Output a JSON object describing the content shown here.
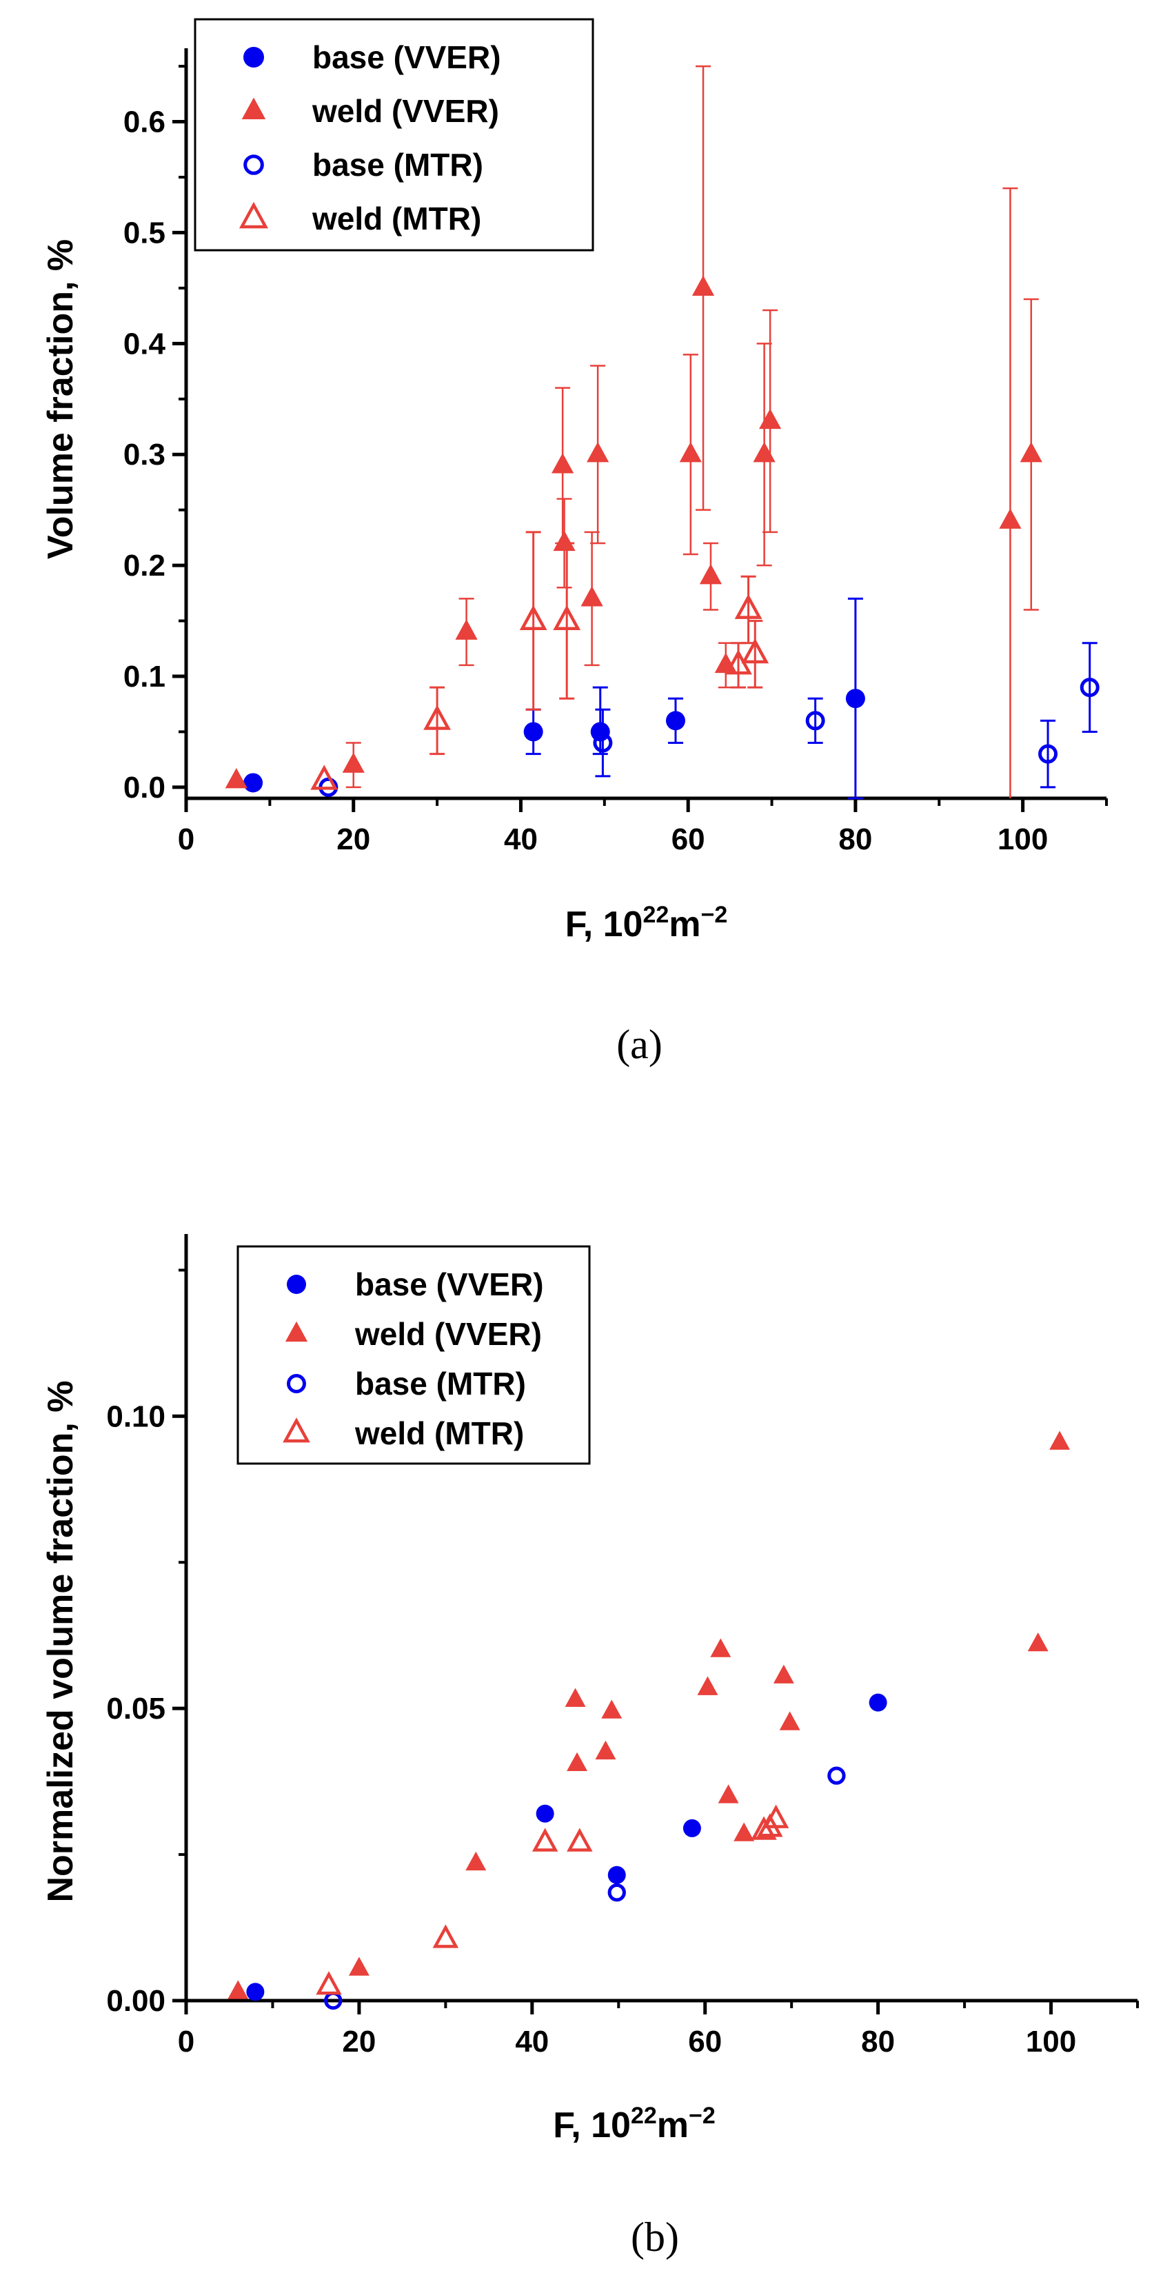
{
  "colors": {
    "blue": "#0000ee",
    "red": "#e8403a",
    "axis": "#000000"
  },
  "chart_data": [
    {
      "type": "scatter",
      "panel_label": "(a)",
      "xlabel_main": "F, 10",
      "xlabel_sup1": "22",
      "xlabel_mid": "m",
      "xlabel_sup2": "−2",
      "ylabel": "Volume fraction, %",
      "xlim": [
        0,
        110
      ],
      "ylim": [
        -0.01,
        0.66
      ],
      "xticks": [
        0,
        20,
        40,
        60,
        80,
        100
      ],
      "xtick_labels": [
        "0",
        "20",
        "40",
        "60",
        "80",
        "100"
      ],
      "yticks": [
        0.0,
        0.1,
        0.2,
        0.3,
        0.4,
        0.5,
        0.6
      ],
      "ytick_labels": [
        "0.0",
        "0.1",
        "0.2",
        "0.3",
        "0.4",
        "0.5",
        "0.6"
      ],
      "legend_position": "top-left",
      "series": [
        {
          "name": "base (VVER)",
          "marker": "circle",
          "filled": true,
          "color": "blue",
          "points": [
            {
              "x": 8,
              "y": 0.004,
              "lo": null,
              "hi": null
            },
            {
              "x": 41.5,
              "y": 0.05,
              "lo": 0.03,
              "hi": 0.07
            },
            {
              "x": 49.5,
              "y": 0.05,
              "lo": 0.03,
              "hi": 0.09
            },
            {
              "x": 58.5,
              "y": 0.06,
              "lo": 0.04,
              "hi": 0.08
            },
            {
              "x": 80,
              "y": 0.08,
              "lo": -0.01,
              "hi": 0.17
            }
          ]
        },
        {
          "name": "weld (VVER)",
          "marker": "triangle",
          "filled": true,
          "color": "red",
          "points": [
            {
              "x": 6,
              "y": 0.006,
              "lo": null,
              "hi": null
            },
            {
              "x": 20,
              "y": 0.02,
              "lo": 0.0,
              "hi": 0.04
            },
            {
              "x": 33.5,
              "y": 0.14,
              "lo": 0.11,
              "hi": 0.17
            },
            {
              "x": 45,
              "y": 0.29,
              "lo": 0.22,
              "hi": 0.36
            },
            {
              "x": 45.2,
              "y": 0.22,
              "lo": 0.18,
              "hi": 0.26
            },
            {
              "x": 48.5,
              "y": 0.17,
              "lo": 0.11,
              "hi": 0.23
            },
            {
              "x": 49.2,
              "y": 0.3,
              "lo": 0.22,
              "hi": 0.38
            },
            {
              "x": 60.3,
              "y": 0.3,
              "lo": 0.21,
              "hi": 0.39
            },
            {
              "x": 61.8,
              "y": 0.45,
              "lo": 0.25,
              "hi": 0.65
            },
            {
              "x": 62.7,
              "y": 0.19,
              "lo": 0.16,
              "hi": 0.22
            },
            {
              "x": 64.5,
              "y": 0.11,
              "lo": 0.09,
              "hi": 0.13
            },
            {
              "x": 69.1,
              "y": 0.3,
              "lo": 0.2,
              "hi": 0.4
            },
            {
              "x": 69.8,
              "y": 0.33,
              "lo": 0.23,
              "hi": 0.43
            },
            {
              "x": 98.5,
              "y": 0.24,
              "lo": -0.06,
              "hi": 0.54
            },
            {
              "x": 101,
              "y": 0.3,
              "lo": 0.16,
              "hi": 0.44
            }
          ]
        },
        {
          "name": "base (MTR)",
          "marker": "circle",
          "filled": false,
          "color": "blue",
          "points": [
            {
              "x": 17,
              "y": 0.0,
              "lo": null,
              "hi": null
            },
            {
              "x": 49.8,
              "y": 0.04,
              "lo": 0.01,
              "hi": 0.07
            },
            {
              "x": 75.2,
              "y": 0.06,
              "lo": 0.04,
              "hi": 0.08
            },
            {
              "x": 103,
              "y": 0.03,
              "lo": 0.0,
              "hi": 0.06
            },
            {
              "x": 108,
              "y": 0.09,
              "lo": 0.05,
              "hi": 0.13
            }
          ]
        },
        {
          "name": "weld (MTR)",
          "marker": "triangle",
          "filled": false,
          "color": "red",
          "points": [
            {
              "x": 16.5,
              "y": 0.006,
              "lo": null,
              "hi": null
            },
            {
              "x": 30,
              "y": 0.06,
              "lo": 0.03,
              "hi": 0.09
            },
            {
              "x": 41.5,
              "y": 0.15,
              "lo": 0.07,
              "hi": 0.23
            },
            {
              "x": 45.5,
              "y": 0.15,
              "lo": 0.08,
              "hi": 0.22
            },
            {
              "x": 66,
              "y": 0.11,
              "lo": 0.09,
              "hi": 0.13
            },
            {
              "x": 67.2,
              "y": 0.16,
              "lo": 0.13,
              "hi": 0.19
            },
            {
              "x": 68,
              "y": 0.12,
              "lo": 0.09,
              "hi": 0.15
            }
          ]
        }
      ]
    },
    {
      "type": "scatter",
      "panel_label": "(b)",
      "xlabel_main": "F, 10",
      "xlabel_sup1": "22",
      "xlabel_mid": "m",
      "xlabel_sup2": "−2",
      "ylabel": "Normalized volume fraction, %",
      "xlim": [
        0,
        110
      ],
      "ylim": [
        0,
        0.13
      ],
      "xticks": [
        0,
        20,
        40,
        60,
        80,
        100
      ],
      "xtick_labels": [
        "0",
        "20",
        "40",
        "60",
        "80",
        "100"
      ],
      "yticks": [
        0.0,
        0.05,
        0.1
      ],
      "ytick_labels": [
        "0.00",
        "0.05",
        "0.10"
      ],
      "legend_position": "top-left",
      "series": [
        {
          "name": "base (VVER)",
          "marker": "circle",
          "filled": true,
          "color": "blue",
          "points": [
            {
              "x": 8,
              "y": 0.0015
            },
            {
              "x": 41.5,
              "y": 0.032
            },
            {
              "x": 49.8,
              "y": 0.0215
            },
            {
              "x": 58.5,
              "y": 0.0295
            },
            {
              "x": 80,
              "y": 0.051
            }
          ]
        },
        {
          "name": "weld (VVER)",
          "marker": "triangle",
          "filled": true,
          "color": "red",
          "points": [
            {
              "x": 6,
              "y": 0.0015
            },
            {
              "x": 20,
              "y": 0.0055
            },
            {
              "x": 33.5,
              "y": 0.0235
            },
            {
              "x": 45,
              "y": 0.0515
            },
            {
              "x": 45.2,
              "y": 0.0405
            },
            {
              "x": 48.5,
              "y": 0.0425
            },
            {
              "x": 49.2,
              "y": 0.0495
            },
            {
              "x": 60.3,
              "y": 0.0535
            },
            {
              "x": 61.8,
              "y": 0.06
            },
            {
              "x": 62.7,
              "y": 0.035
            },
            {
              "x": 64.5,
              "y": 0.0285
            },
            {
              "x": 69.1,
              "y": 0.0555
            },
            {
              "x": 69.8,
              "y": 0.0475
            },
            {
              "x": 98.5,
              "y": 0.061
            },
            {
              "x": 101,
              "y": 0.0955
            }
          ]
        },
        {
          "name": "base (MTR)",
          "marker": "circle",
          "filled": false,
          "color": "blue",
          "points": [
            {
              "x": 17,
              "y": 0.0
            },
            {
              "x": 49.8,
              "y": 0.0185
            },
            {
              "x": 75.2,
              "y": 0.0385
            }
          ]
        },
        {
          "name": "weld (MTR)",
          "marker": "triangle",
          "filled": false,
          "color": "red",
          "points": [
            {
              "x": 16.5,
              "y": 0.0025
            },
            {
              "x": 30,
              "y": 0.0105
            },
            {
              "x": 41.5,
              "y": 0.027
            },
            {
              "x": 45.5,
              "y": 0.027
            },
            {
              "x": 66.8,
              "y": 0.029
            },
            {
              "x": 67.5,
              "y": 0.0295
            },
            {
              "x": 68.2,
              "y": 0.031
            }
          ]
        }
      ]
    }
  ]
}
